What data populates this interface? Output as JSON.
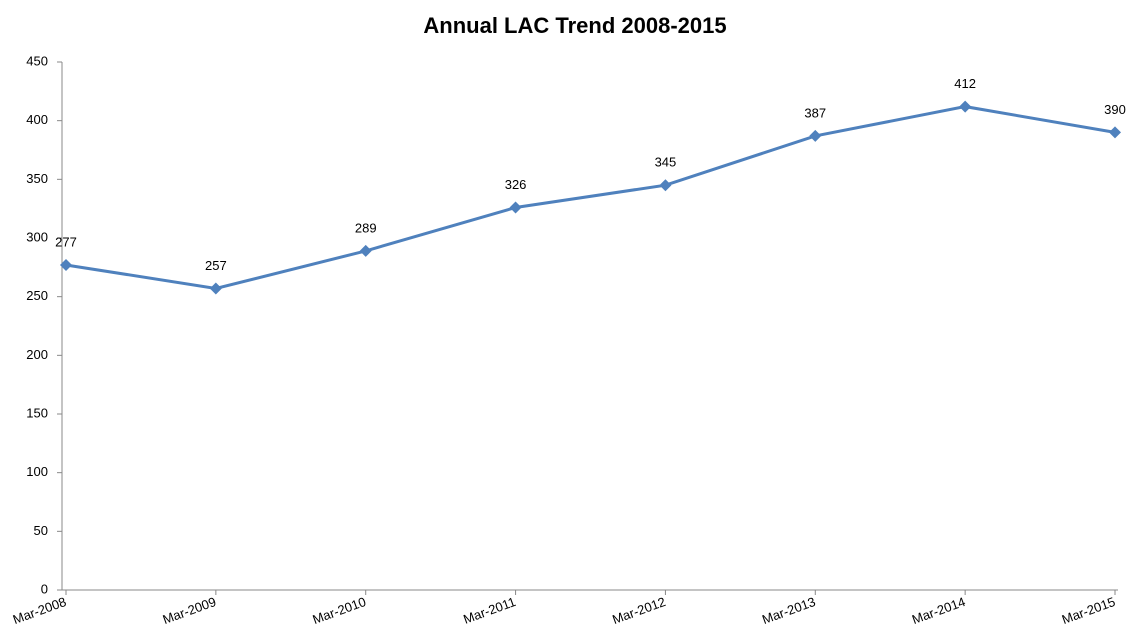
{
  "chart_data": {
    "type": "line",
    "title": "Annual LAC Trend 2008-2015",
    "categories": [
      "Mar-2008",
      "Mar-2009",
      "Mar-2010",
      "Mar-2011",
      "Mar-2012",
      "Mar-2013",
      "Mar-2014",
      "Mar-2015"
    ],
    "values": [
      277,
      257,
      289,
      326,
      345,
      387,
      412,
      390
    ],
    "color": "#4f81bd",
    "ylim": [
      0,
      450
    ],
    "yticks": [
      0,
      50,
      100,
      150,
      200,
      250,
      300,
      350,
      400,
      450
    ],
    "grid": false
  }
}
